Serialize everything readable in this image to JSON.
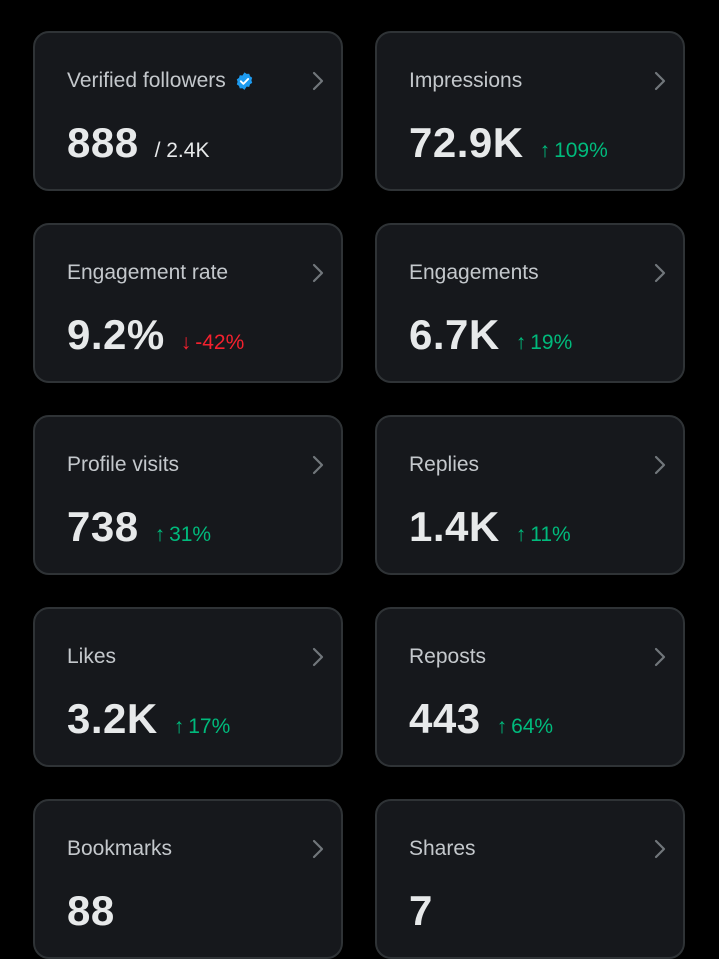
{
  "colors": {
    "background": "#000000",
    "card": "#16181c",
    "border": "#2f3336",
    "positive": "#00ba7c",
    "negative": "#f4212e",
    "verified": "#1d9bf0"
  },
  "cards": [
    {
      "title": "Verified followers",
      "value": "888",
      "total": "/ 2.4K",
      "change": "",
      "direction": ""
    },
    {
      "title": "Impressions",
      "value": "72.9K",
      "total": "",
      "change": "109%",
      "direction": "up"
    },
    {
      "title": "Engagement rate",
      "value": "9.2%",
      "total": "",
      "change": "-42%",
      "direction": "down"
    },
    {
      "title": "Engagements",
      "value": "6.7K",
      "total": "",
      "change": "19%",
      "direction": "up"
    },
    {
      "title": "Profile visits",
      "value": "738",
      "total": "",
      "change": "31%",
      "direction": "up"
    },
    {
      "title": "Replies",
      "value": "1.4K",
      "total": "",
      "change": "11%",
      "direction": "up"
    },
    {
      "title": "Likes",
      "value": "3.2K",
      "total": "",
      "change": "17%",
      "direction": "up"
    },
    {
      "title": "Reposts",
      "value": "443",
      "total": "",
      "change": "64%",
      "direction": "up"
    },
    {
      "title": "Bookmarks",
      "value": "88",
      "total": "",
      "change": "",
      "direction": ""
    },
    {
      "title": "Shares",
      "value": "7",
      "total": "",
      "change": "",
      "direction": ""
    }
  ]
}
